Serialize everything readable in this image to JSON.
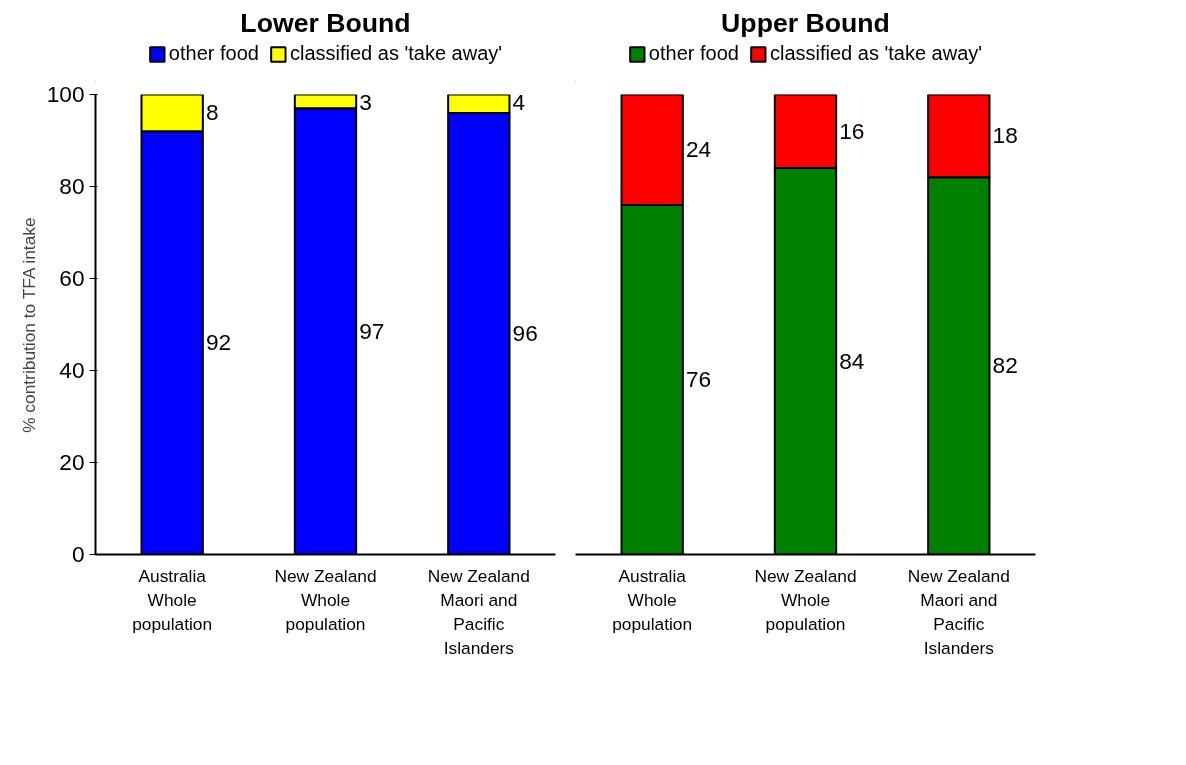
{
  "chart_data": [
    {
      "type": "bar",
      "title": "Lower Bound",
      "ylabel": "% contribution to TFA intake",
      "categories": [
        "Australia\nWhole population",
        "New Zealand\nWhole population",
        "New Zealand\nMaori and Pacific Islanders"
      ],
      "stacked": true,
      "ylim": [
        0,
        100
      ],
      "yticks": [
        0,
        20,
        40,
        60,
        80,
        100
      ],
      "grid": false,
      "legend": "top",
      "data_labels": true,
      "series": [
        {
          "name": "other food",
          "color": "#0000ff",
          "values": [
            92,
            97,
            96
          ]
        },
        {
          "name": "classified as 'take away'",
          "color": "#ffff00",
          "values": [
            8,
            3,
            4
          ]
        }
      ]
    },
    {
      "type": "bar",
      "title": "Upper Bound",
      "categories": [
        "Australia\nWhole population",
        "New Zealand\nWhole population",
        "New Zealand\nMaori and Pacific Islanders"
      ],
      "stacked": true,
      "ylim": [
        0,
        100
      ],
      "yticks": [
        0,
        20,
        40,
        60,
        80,
        100
      ],
      "grid": false,
      "legend": "top",
      "data_labels": true,
      "tick_labels": "x",
      "series": [
        {
          "name": "other food",
          "color": "#008000",
          "values": [
            76,
            84,
            82
          ]
        },
        {
          "name": "classified as 'take away'",
          "color": "#ff0000",
          "values": [
            24,
            16,
            18
          ]
        }
      ]
    }
  ]
}
